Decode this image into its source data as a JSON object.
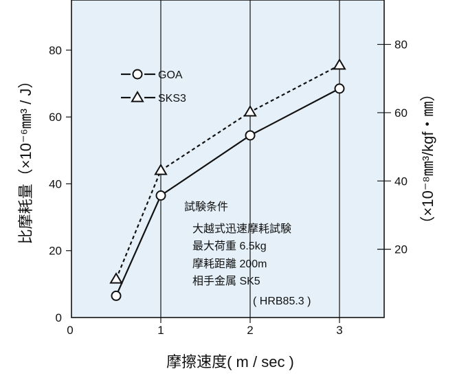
{
  "chart_data": {
    "type": "line",
    "xlabel": "摩擦速度( m / sec )",
    "ylabel": "比摩耗量（×10⁻⁶㎜³ / J）",
    "y2label": "（×10⁻⁸㎜³/kgf・㎜）",
    "xlim": [
      0,
      3.5
    ],
    "ylim": [
      0,
      95
    ],
    "y2lim": [
      0,
      93
    ],
    "x_ticks": [
      0,
      1,
      2,
      3
    ],
    "x_tick_labels": [
      "0",
      "1",
      "2",
      "3"
    ],
    "y_ticks": [
      0,
      20,
      40,
      60,
      80
    ],
    "y_tick_labels": [
      "0",
      "20",
      "40",
      "60",
      "80"
    ],
    "y2_ticks": [
      20,
      40,
      60,
      80
    ],
    "y2_tick_labels": [
      "20",
      "40",
      "60",
      "80"
    ],
    "grid": "vertical lines at x = 1, 2, 3",
    "background": "#e5f0f8",
    "legend_position": "top-left",
    "series": [
      {
        "name": "GOA",
        "marker": "circle",
        "line_style": "solid",
        "x": [
          0.5,
          1,
          2,
          3
        ],
        "y": [
          6.5,
          36.5,
          54.5,
          68.5
        ]
      },
      {
        "name": "SKS3",
        "marker": "triangle",
        "line_style": "dashed",
        "x": [
          0.5,
          1,
          2,
          3
        ],
        "y": [
          11.5,
          44,
          61.5,
          75.5
        ]
      }
    ],
    "annotations": [
      "試験条件",
      "大越式迅速摩耗試験",
      "最大荷重 6.5kg",
      "摩耗距離 200m",
      "相手金属 SK5",
      "( HRB85.3 )"
    ]
  }
}
